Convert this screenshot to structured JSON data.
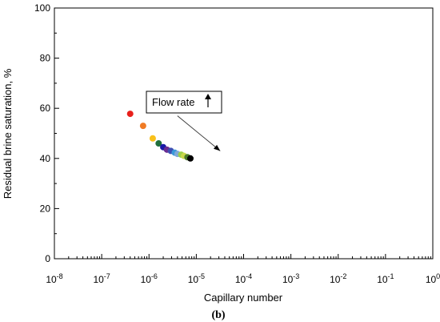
{
  "chart_data": {
    "type": "scatter",
    "xlabel": "Capillary number",
    "ylabel": "Residual brine saturation, %",
    "panel_label": "(b)",
    "x_scale": "log",
    "xlim": [
      1e-08,
      1
    ],
    "ylim": [
      0,
      100
    ],
    "x_ticks": [
      {
        "base": "10",
        "exp": "-8"
      },
      {
        "base": "10",
        "exp": "-7"
      },
      {
        "base": "10",
        "exp": "-6"
      },
      {
        "base": "10",
        "exp": "-5"
      },
      {
        "base": "10",
        "exp": "-4"
      },
      {
        "base": "10",
        "exp": "-3"
      },
      {
        "base": "10",
        "exp": "-2"
      },
      {
        "base": "10",
        "exp": "-1"
      },
      {
        "base": "10",
        "exp": "0"
      }
    ],
    "y_ticks": [
      "0",
      "20",
      "40",
      "60",
      "80",
      "100"
    ],
    "grid": false,
    "points": [
      {
        "x": 4e-07,
        "y": 57.8,
        "color": "#e8201b"
      },
      {
        "x": 7.5e-07,
        "y": 53.0,
        "color": "#f07b24"
      },
      {
        "x": 1.2e-06,
        "y": 48.0,
        "color": "#f9c11b"
      },
      {
        "x": 1.6e-06,
        "y": 46.0,
        "color": "#1f6e3c"
      },
      {
        "x": 2e-06,
        "y": 44.5,
        "color": "#1a1aa6"
      },
      {
        "x": 2.4e-06,
        "y": 43.5,
        "color": "#6a2d91"
      },
      {
        "x": 2.9e-06,
        "y": 43.0,
        "color": "#3d4fb3"
      },
      {
        "x": 3.5e-06,
        "y": 42.3,
        "color": "#3a9ad9"
      },
      {
        "x": 4e-06,
        "y": 41.8,
        "color": "#80a8d8"
      },
      {
        "x": 4.8e-06,
        "y": 41.5,
        "color": "#9ccf4a"
      },
      {
        "x": 5.5e-06,
        "y": 41.0,
        "color": "#c8d84a"
      },
      {
        "x": 6.5e-06,
        "y": 40.5,
        "color": "#4a7a2a"
      },
      {
        "x": 7.5e-06,
        "y": 40.0,
        "color": "#000000"
      }
    ],
    "annotation": {
      "text": "Flow rate",
      "arrow_from": {
        "x": 4e-06,
        "y": 57.0
      },
      "arrow_to": {
        "x": 3.2e-05,
        "y": 43.0
      }
    }
  }
}
